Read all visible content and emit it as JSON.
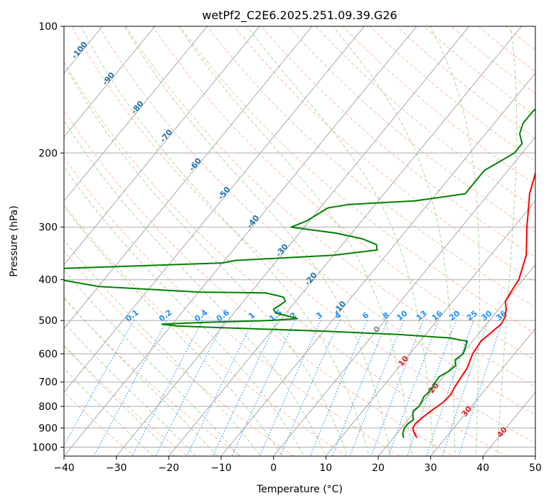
{
  "chart_data": {
    "type": "line",
    "title": "wetPf2_C2E6.2025.251.09.39.G26",
    "xlabel": "Temperature (°C)",
    "ylabel": "Pressure (hPa)",
    "xlim": [
      -40,
      50
    ],
    "ylim": [
      1050,
      100
    ],
    "y_scale": "log",
    "x_ticks": [
      -40,
      -30,
      -20,
      -10,
      0,
      10,
      20,
      30,
      40,
      50
    ],
    "y_ticks": [
      100,
      200,
      300,
      400,
      500,
      600,
      700,
      800,
      900,
      1000
    ],
    "grid": true,
    "colors": {
      "temperature": "#ff0000",
      "dewpoint": "#008000",
      "isotherm": "#aaaaaa",
      "dry_adiabat": "#ffa07a",
      "moist_adiabat": "#9acd82",
      "mixing_ratio": "#1e90ff",
      "isotherm_label": "#1f6fa8",
      "warm_label": "#d62728"
    },
    "series": [
      {
        "key": "temperature",
        "p": [
          950,
          920,
          900,
          880,
          850,
          820,
          800,
          780,
          750,
          720,
          700,
          650,
          600,
          560,
          530,
          510,
          490,
          470,
          450,
          420,
          400,
          350,
          300,
          270,
          250,
          220,
          200,
          180,
          160,
          150,
          140,
          130,
          120,
          110,
          100
        ],
        "t": [
          24.5,
          23.0,
          22.2,
          22.0,
          22.4,
          23.0,
          23.5,
          24.0,
          24.2,
          23.8,
          23.6,
          23.2,
          22.0,
          21.6,
          22.3,
          22.8,
          22.4,
          21.4,
          20.0,
          19.5,
          19.2,
          16.8,
          12.5,
          9.8,
          7.8,
          5.4,
          4.0,
          2.5,
          1.8,
          1.2,
          0.8,
          1.2,
          1.5,
          1.2,
          1.8
        ]
      },
      {
        "key": "dewpoint",
        "p": [
          950,
          930,
          900,
          880,
          860,
          840,
          820,
          800,
          780,
          760,
          740,
          720,
          700,
          680,
          660,
          640,
          620,
          600,
          580,
          560,
          550,
          540,
          530,
          520,
          515,
          510,
          505,
          500,
          495,
          490,
          480,
          470,
          460,
          450,
          440,
          430,
          428,
          415,
          380,
          365,
          360,
          350,
          340,
          330,
          320,
          310,
          300,
          295,
          290,
          280,
          270,
          265,
          260,
          250,
          240,
          230,
          220,
          210,
          200,
          190,
          180,
          170,
          160,
          150,
          140,
          130,
          120,
          110,
          100
        ],
        "t": [
          22.0,
          21.2,
          20.6,
          20.6,
          21.0,
          20.2,
          19.6,
          20.0,
          19.8,
          19.4,
          19.6,
          19.6,
          19.3,
          19.2,
          20.2,
          20.6,
          19.6,
          20.2,
          19.6,
          19.0,
          15.0,
          5.0,
          -10.0,
          -30.0,
          -39.0,
          -42.0,
          -34.0,
          -22.0,
          -17.0,
          -18.5,
          -22.0,
          -23.0,
          -22.4,
          -22.0,
          -23.0,
          -27.0,
          -40.0,
          -60.0,
          -80.0,
          -40.0,
          -38.0,
          -20.0,
          -12.5,
          -13.5,
          -17.0,
          -23.0,
          -32.5,
          -31.5,
          -30.5,
          -29.5,
          -28.5,
          -25.0,
          -13.0,
          -4.5,
          -4.5,
          -4.5,
          -4.5,
          -3.0,
          -1.5,
          -1.5,
          -3.5,
          -4.5,
          -4.5,
          -4.0,
          -1.5,
          -0.5,
          -1.0,
          0.0,
          0.0
        ]
      }
    ],
    "isotherm_labels": [
      -100,
      -90,
      -80,
      -70,
      -60,
      -50,
      -40,
      -30,
      -20,
      -10
    ],
    "mixing_ratio_labels": [
      "0.1",
      "0.2",
      "0.4",
      "0.6",
      "1",
      "1.5",
      "2",
      "3",
      "4",
      "6",
      "8",
      "10",
      "13",
      "16",
      "20",
      "25",
      "30",
      "36"
    ],
    "warm_isotherm_labels": [
      "0",
      "10",
      "20",
      "30",
      "40"
    ]
  }
}
